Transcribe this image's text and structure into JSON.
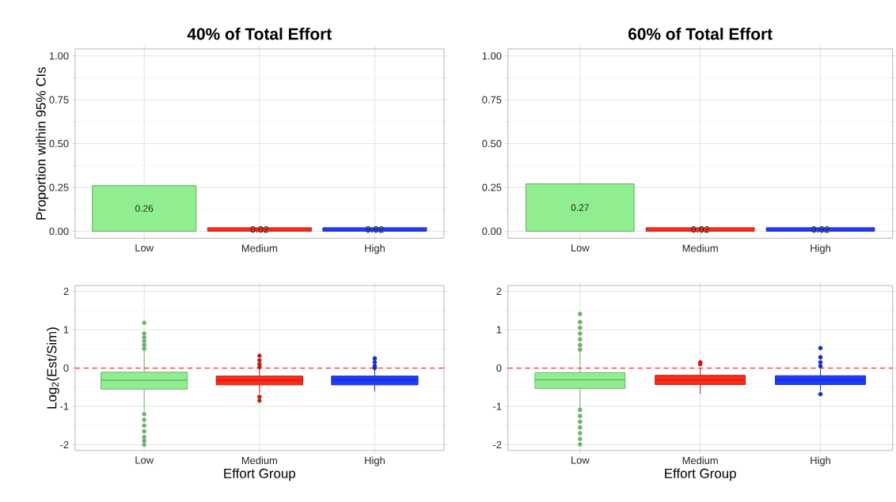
{
  "chart_data": [
    {
      "type": "bar",
      "title": "40% of Total Effort",
      "ylabel": "Proportion within 95% CIs",
      "categories": [
        "Low",
        "Medium",
        "High"
      ],
      "values": [
        0.26,
        0.02,
        0.02
      ],
      "colors": [
        "#90ee90",
        "#ff2a1a",
        "#1f3cff"
      ],
      "data_labels": true,
      "ylim": [
        -0.04,
        1.04
      ],
      "yticks": [
        {
          "value": 0,
          "label": "0.00"
        },
        {
          "value": 0.25,
          "label": "0.25"
        },
        {
          "value": 0.5,
          "label": "0.50"
        },
        {
          "value": 0.75,
          "label": "0.75"
        },
        {
          "value": 1,
          "label": "1.00"
        }
      ],
      "grid": true
    },
    {
      "type": "bar",
      "title": "60% of Total Effort",
      "categories": [
        "Low",
        "Medium",
        "High"
      ],
      "values": [
        0.27,
        0.02,
        0.02
      ],
      "colors": [
        "#90ee90",
        "#ff2a1a",
        "#1f3cff"
      ],
      "data_labels": true,
      "ylim": [
        -0.04,
        1.04
      ],
      "yticks": [
        {
          "value": 0,
          "label": "0.00"
        },
        {
          "value": 0.25,
          "label": "0.25"
        },
        {
          "value": 0.5,
          "label": "0.50"
        },
        {
          "value": 0.75,
          "label": "0.75"
        },
        {
          "value": 1,
          "label": "1.00"
        }
      ],
      "grid": true
    },
    {
      "type": "box",
      "xlabel": "Effort Group",
      "ylabel": "Log$_{2}$(Est/Sim)",
      "categories": [
        "Low",
        "Medium",
        "High"
      ],
      "colors": [
        "#90ee90",
        "#ff2a1a",
        "#1f3cff"
      ],
      "boxes": [
        {
          "low": -1.12,
          "q1": -0.55,
          "median": -0.32,
          "q3": -0.11,
          "high": 0.45,
          "outliers": [
            1.18,
            0.9,
            0.8,
            0.7,
            0.6,
            0.5,
            -1.2,
            -1.35,
            -1.5,
            -1.65,
            -1.8,
            -1.9,
            -2.0
          ]
        },
        {
          "low": -0.66,
          "q1": -0.44,
          "median": -0.32,
          "q3": -0.21,
          "high": -0.02,
          "outliers": [
            0.32,
            0.2,
            0.1,
            0.02,
            -0.75,
            -0.85
          ]
        },
        {
          "low": -0.61,
          "q1": -0.44,
          "median": -0.32,
          "q3": -0.21,
          "high": -0.02,
          "outliers": [
            0.25,
            0.15,
            0.05,
            0.0
          ]
        }
      ],
      "ref_lines": [
        {
          "axis": "y",
          "value": 0,
          "color": "#ff2a1a",
          "line_style": "dashed"
        }
      ],
      "ylim": [
        -2.15,
        2.15
      ],
      "yticks": [
        -2,
        -1,
        0,
        1,
        2
      ],
      "grid": true
    },
    {
      "type": "box",
      "xlabel": "Effort Group",
      "categories": [
        "Low",
        "Medium",
        "High"
      ],
      "colors": [
        "#90ee90",
        "#ff2a1a",
        "#1f3cff"
      ],
      "boxes": [
        {
          "low": -1.05,
          "q1": -0.53,
          "median": -0.31,
          "q3": -0.12,
          "high": 0.45,
          "outliers": [
            1.41,
            1.2,
            1.05,
            0.9,
            0.75,
            0.6,
            0.48,
            -1.09,
            -1.25,
            -1.4,
            -1.55,
            -1.7,
            -1.85,
            -1.99
          ]
        },
        {
          "low": -0.68,
          "q1": -0.43,
          "median": -0.31,
          "q3": -0.19,
          "high": 0.0,
          "outliers": [
            0.15,
            0.1
          ]
        },
        {
          "low": -0.6,
          "q1": -0.43,
          "median": -0.31,
          "q3": -0.2,
          "high": -0.02,
          "outliers": [
            0.52,
            0.28,
            0.15,
            0.05,
            -0.68
          ]
        }
      ],
      "ref_lines": [
        {
          "axis": "y",
          "value": 0,
          "color": "#ff2a1a",
          "line_style": "dashed"
        }
      ],
      "ylim": [
        -2.15,
        2.15
      ],
      "yticks": [
        -2,
        -1,
        0,
        1,
        2
      ],
      "grid": true
    }
  ]
}
